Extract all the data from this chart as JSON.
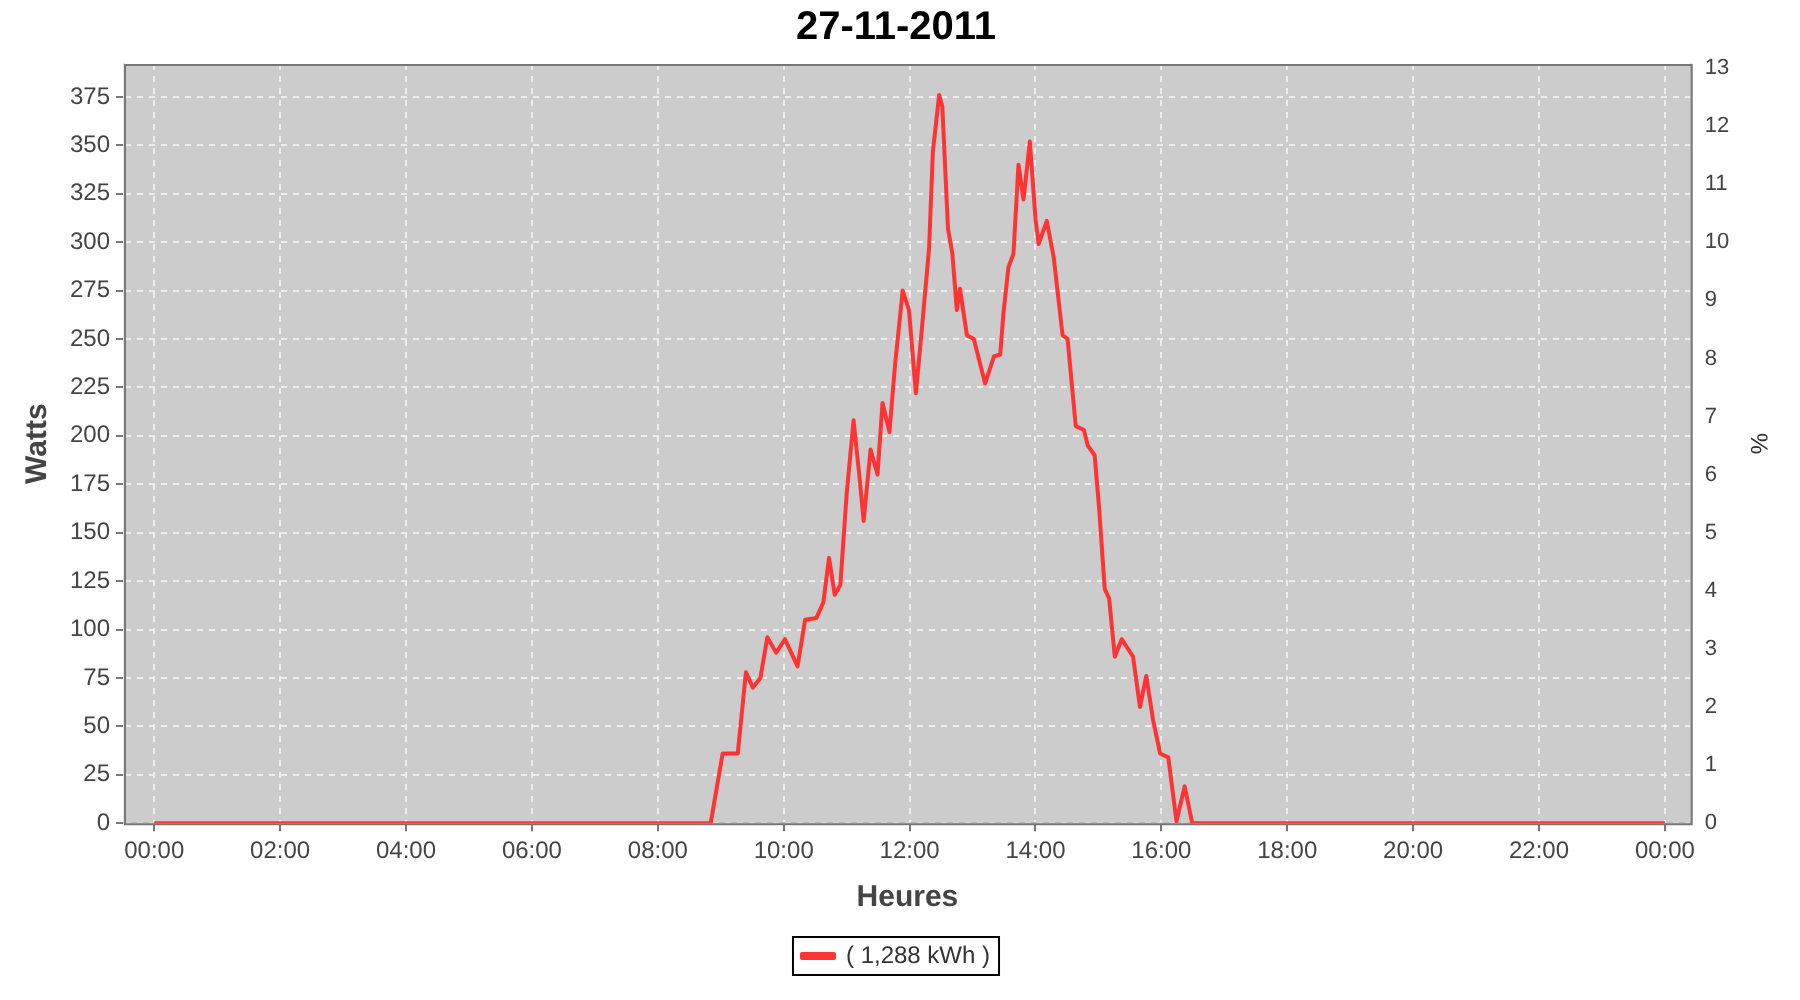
{
  "chart_data": {
    "type": "line",
    "title": "27-11-2011",
    "xlabel": "Heures",
    "ylabel": "Watts",
    "y2label": "%",
    "xlim": [
      -0.48,
      24.41
    ],
    "xticks": [
      {
        "value": 0,
        "label": "00:00"
      },
      {
        "value": 2,
        "label": "02:00"
      },
      {
        "value": 4,
        "label": "04:00"
      },
      {
        "value": 6,
        "label": "06:00"
      },
      {
        "value": 8,
        "label": "08:00"
      },
      {
        "value": 10,
        "label": "10:00"
      },
      {
        "value": 12,
        "label": "12:00"
      },
      {
        "value": 14,
        "label": "14:00"
      },
      {
        "value": 16,
        "label": "16:00"
      },
      {
        "value": 18,
        "label": "18:00"
      },
      {
        "value": 20,
        "label": "20:00"
      },
      {
        "value": 22,
        "label": "22:00"
      },
      {
        "value": 24,
        "label": "00:00"
      }
    ],
    "ylim": [
      0,
      392
    ],
    "yticks": [
      0,
      25,
      50,
      75,
      100,
      125,
      150,
      175,
      200,
      225,
      250,
      275,
      300,
      325,
      350,
      375
    ],
    "y2lim": [
      0,
      13.07
    ],
    "y2ticks": [
      0,
      1,
      2,
      3,
      4,
      5,
      6,
      7,
      8,
      9,
      10,
      11,
      12,
      13
    ],
    "grid": true,
    "legend": "bottom",
    "marker": "none",
    "line_style": "solid",
    "series": [
      {
        "name": "( 1,288 kWh )",
        "color": "#ff3333",
        "x": [
          0,
          8.84,
          9.03,
          9.27,
          9.4,
          9.51,
          9.63,
          9.74,
          9.88,
          10.02,
          10.22,
          10.34,
          10.52,
          10.63,
          10.72,
          10.81,
          10.9,
          11.0,
          11.11,
          11.2,
          11.27,
          11.38,
          11.49,
          11.57,
          11.68,
          11.77,
          11.89,
          11.99,
          12.1,
          12.2,
          12.31,
          12.37,
          12.47,
          12.52,
          12.61,
          12.68,
          12.75,
          12.8,
          12.91,
          13.02,
          13.2,
          13.34,
          13.44,
          13.49,
          13.57,
          13.65,
          13.73,
          13.81,
          13.91,
          14.0,
          14.05,
          14.18,
          14.29,
          14.43,
          14.51,
          14.64,
          14.77,
          14.83,
          14.94,
          15.01,
          15.1,
          15.17,
          15.26,
          15.37,
          15.55,
          15.66,
          15.76,
          15.87,
          15.98,
          16.11,
          16.24,
          16.37,
          16.49,
          24
        ],
        "values": [
          0,
          0,
          36,
          36,
          78,
          70,
          75,
          96,
          88,
          95,
          81,
          105,
          106,
          114,
          137,
          118,
          123,
          170,
          208,
          180,
          156,
          193,
          180,
          217,
          202,
          237,
          275,
          265,
          222,
          257,
          297,
          347,
          376,
          370,
          307,
          294,
          265,
          276,
          252,
          250,
          227,
          241,
          242,
          263,
          287,
          294,
          340,
          322,
          352,
          312,
          299,
          311,
          292,
          252,
          250,
          205,
          203,
          195,
          190,
          163,
          121,
          116,
          86,
          95,
          86,
          60,
          76,
          53,
          36,
          34,
          1,
          19,
          0,
          0
        ]
      }
    ]
  }
}
